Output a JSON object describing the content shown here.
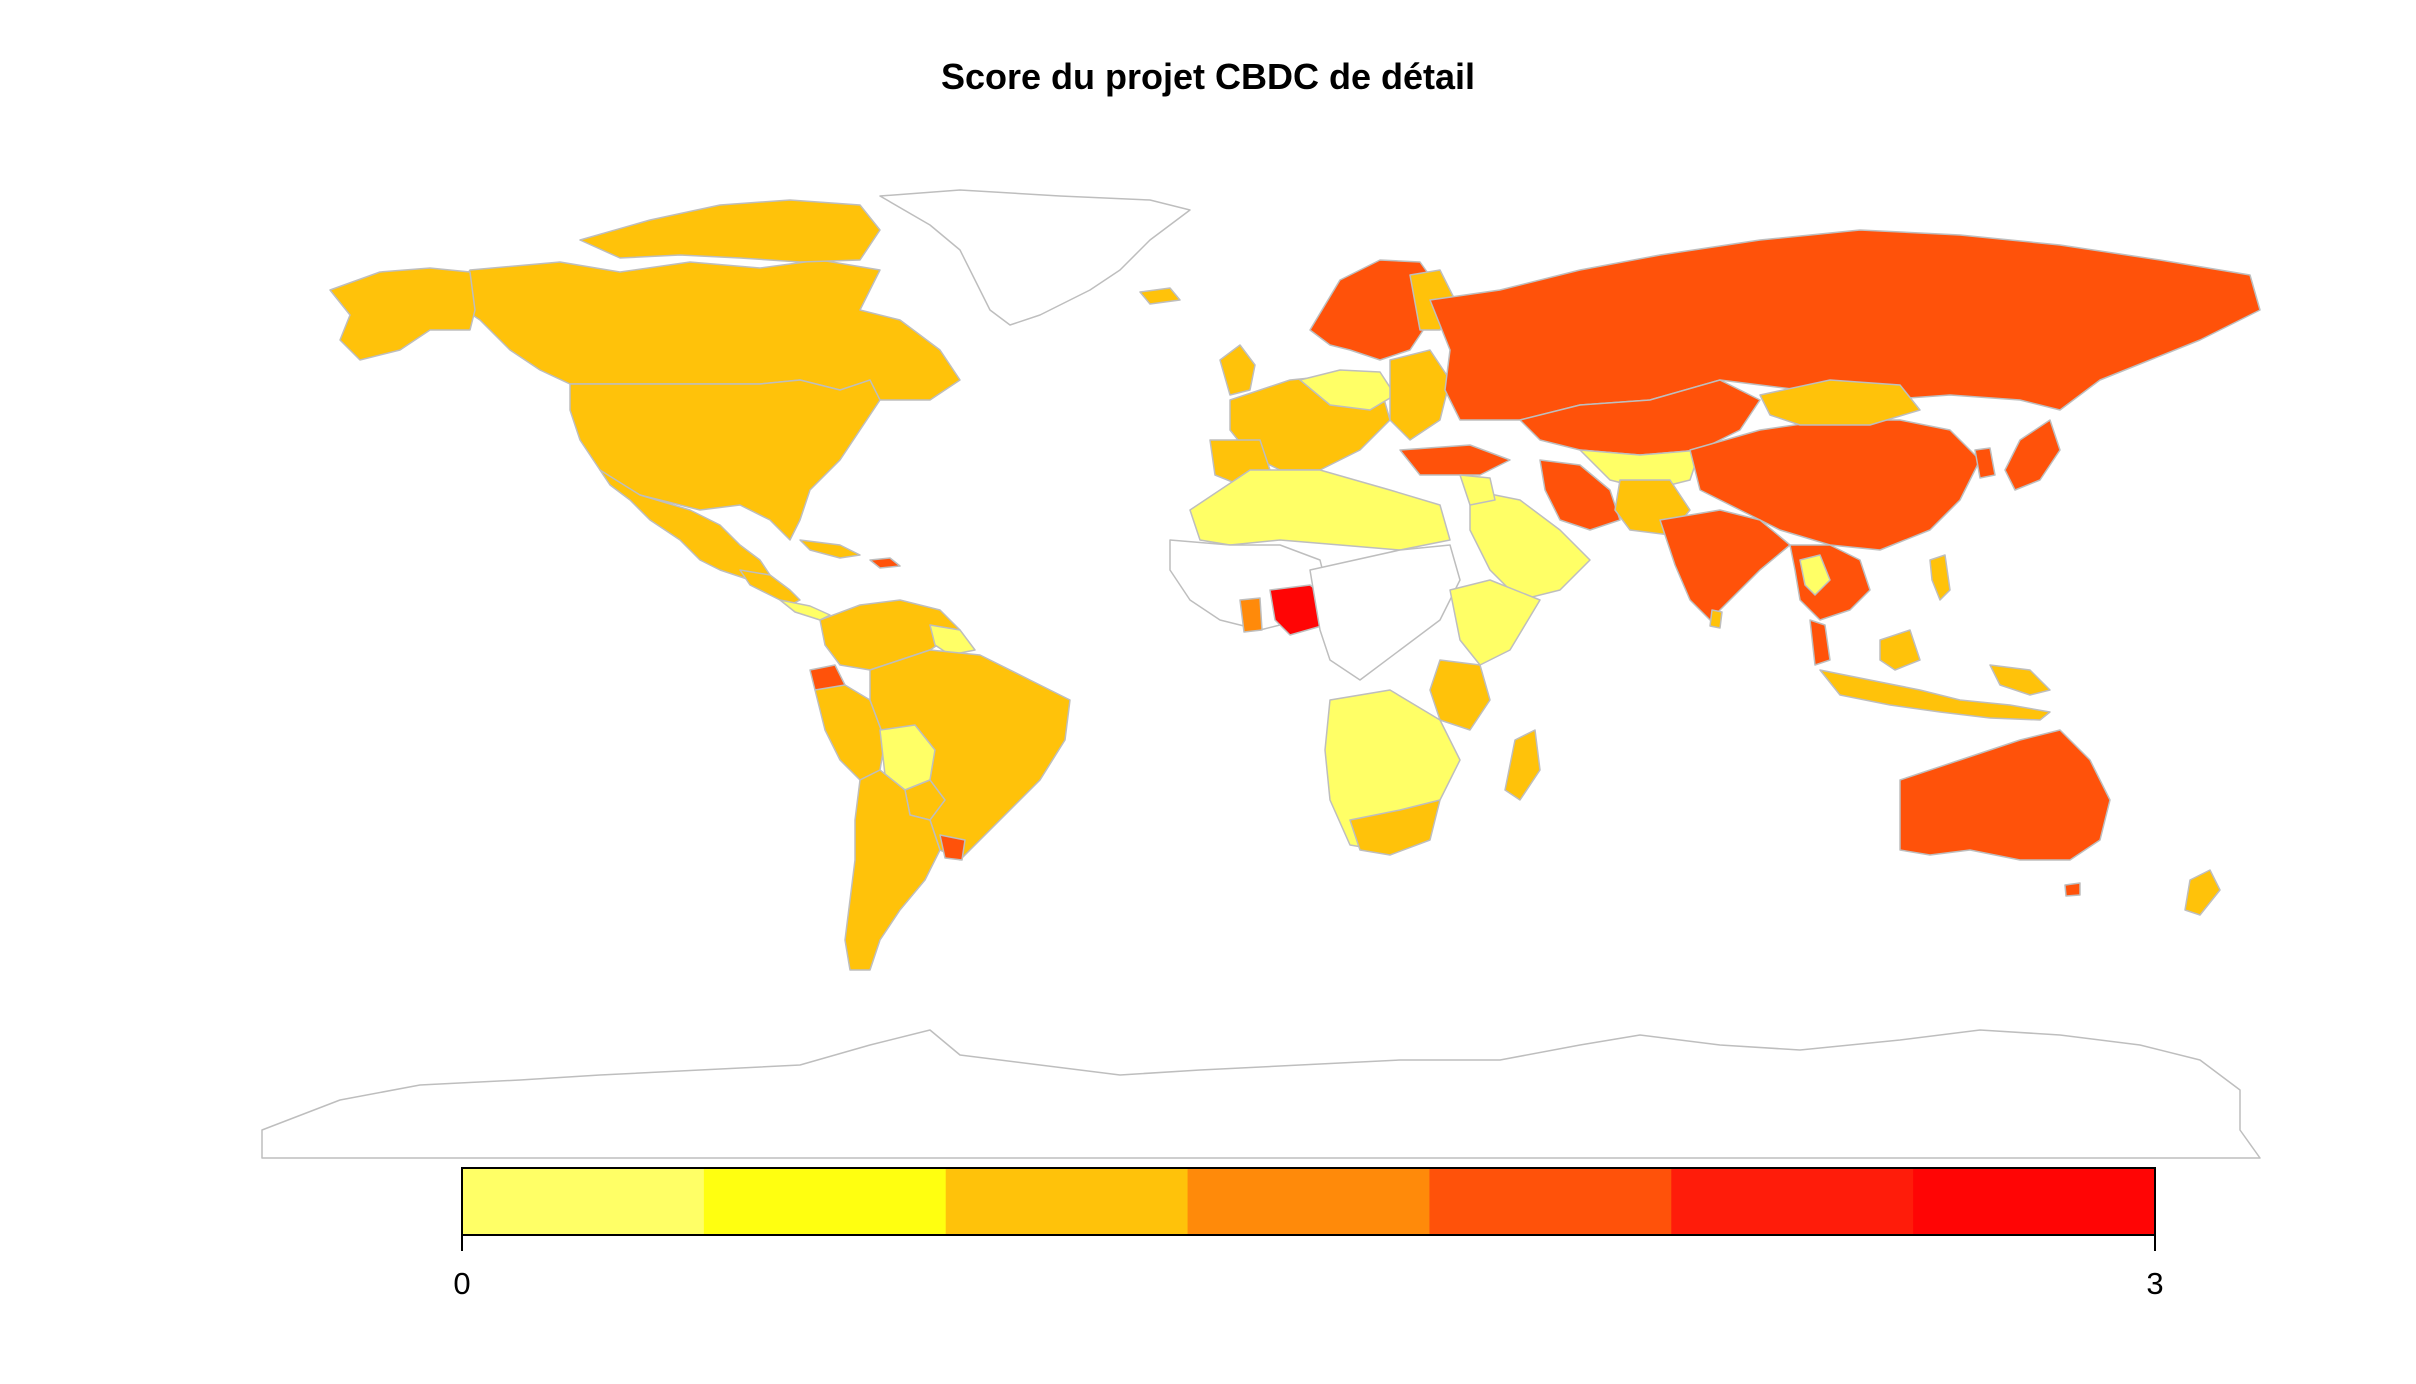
{
  "title": "Score du projet CBDC de détail",
  "legend": {
    "min_label": "0",
    "max_label": "3",
    "min": 0,
    "max": 3,
    "bins": 7,
    "colors": [
      "#FFFF66",
      "#FFFF10",
      "#FFC20A",
      "#FF8A0A",
      "#FF520A",
      "#FF1C0A",
      "#FF0505"
    ]
  },
  "map": {
    "no_data_color": "#FFFFFF",
    "border_color": "#BEBEBE"
  }
}
